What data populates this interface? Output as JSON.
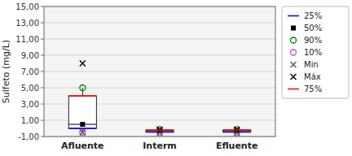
{
  "chart_data": {
    "type": "box",
    "categories": [
      "Afluente",
      "Interm",
      "Efluente"
    ],
    "ylabel": "Sulfeto (mg/L)",
    "ylim": [
      -1.0,
      15.0
    ],
    "yticks": [
      {
        "value": -1.0,
        "label": "-1,00"
      },
      {
        "value": 1.0,
        "label": "1,00"
      },
      {
        "value": 3.0,
        "label": "3,00"
      },
      {
        "value": 5.0,
        "label": "5,00"
      },
      {
        "value": 7.0,
        "label": "7,00"
      },
      {
        "value": 9.0,
        "label": "9,00"
      },
      {
        "value": 11.0,
        "label": "11,00"
      },
      {
        "value": 13.0,
        "label": "13,00"
      },
      {
        "value": 15.0,
        "label": "15,00"
      }
    ],
    "grid": true,
    "legend": "right",
    "series": [
      {
        "name": "25%",
        "color": "blue",
        "marker": "line",
        "values": [
          0.0,
          -0.45,
          -0.45
        ]
      },
      {
        "name": "50%",
        "color": "black",
        "marker": "square",
        "values": [
          0.5,
          -0.3,
          -0.3
        ]
      },
      {
        "name": "90%",
        "color": "green",
        "marker": "circle",
        "values": [
          5.0,
          -0.15,
          -0.15
        ]
      },
      {
        "name": "10%",
        "color": "#cc44cc",
        "marker": "circle",
        "values": [
          -0.5,
          -0.55,
          -0.55
        ]
      },
      {
        "name": "Min",
        "color": "#555555",
        "marker": "x",
        "values": [
          -0.5,
          -0.55,
          -0.55
        ]
      },
      {
        "name": "Máx",
        "color": "black",
        "marker": "x",
        "values": [
          8.0,
          -0.15,
          -0.15
        ]
      },
      {
        "name": "75%",
        "color": "red",
        "marker": "line",
        "values": [
          4.0,
          -0.2,
          -0.2
        ]
      }
    ]
  }
}
